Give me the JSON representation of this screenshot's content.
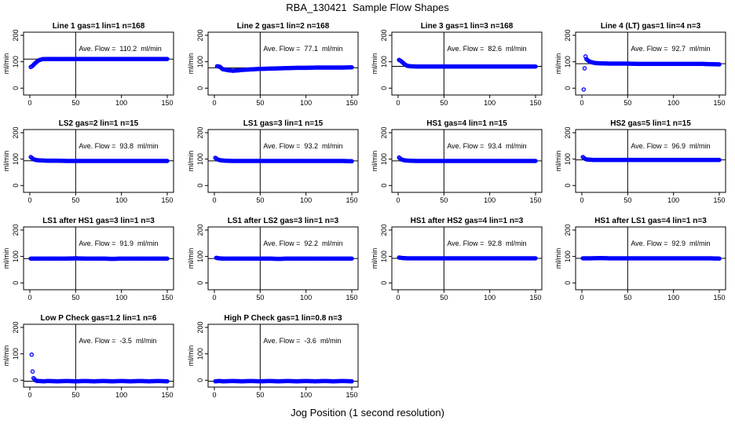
{
  "title": "RBA_130421  Sample Flow Shapes",
  "xlabel": "Jog Position (1 second resolution)",
  "colors": {
    "points": "#0000ff",
    "axes": "#000000"
  },
  "chart_data": [
    {
      "type": "scatter",
      "title": "Line 1 gas=1 lin=1 n=168",
      "ylabel": "ml/min",
      "xlim": [
        0,
        150
      ],
      "ylim": [
        -20,
        200
      ],
      "xticks": [
        0,
        50,
        100,
        150
      ],
      "yticks": [
        0,
        100,
        200
      ],
      "vline_x": 50,
      "hline_y": 110.2,
      "annotation": "Ave. Flow =  110.2  ml/min",
      "points": [
        [
          1,
          80
        ],
        [
          2,
          82
        ],
        [
          3,
          85
        ],
        [
          4,
          88
        ],
        [
          5,
          92
        ],
        [
          6,
          95
        ],
        [
          7,
          98
        ],
        [
          8,
          101
        ],
        [
          9,
          104
        ],
        [
          10,
          106
        ],
        [
          11,
          107
        ],
        [
          12,
          108
        ],
        [
          13,
          109
        ],
        [
          14,
          110
        ],
        [
          15,
          110
        ],
        [
          20,
          110.5
        ],
        [
          30,
          110.5
        ],
        [
          40,
          110.5
        ],
        [
          50,
          110.5
        ],
        [
          60,
          110.5
        ],
        [
          70,
          110.5
        ],
        [
          80,
          110.5
        ],
        [
          90,
          110.5
        ],
        [
          100,
          110.5
        ],
        [
          110,
          110.5
        ],
        [
          120,
          110.5
        ],
        [
          130,
          110.5
        ],
        [
          140,
          110.5
        ],
        [
          150,
          110.5
        ]
      ]
    },
    {
      "type": "scatter",
      "title": "Line 2 gas=1 lin=2 n=168",
      "ylabel": "ml/min",
      "xlim": [
        0,
        150
      ],
      "ylim": [
        -20,
        200
      ],
      "xticks": [
        0,
        50,
        100,
        150
      ],
      "yticks": [
        0,
        100,
        200
      ],
      "vline_x": 50,
      "hline_y": 77.1,
      "annotation": "Ave. Flow =  77.1  ml/min",
      "points": [
        [
          3,
          83
        ],
        [
          6,
          81
        ],
        [
          9,
          72
        ],
        [
          12,
          70
        ],
        [
          15,
          68
        ],
        [
          20,
          66
        ],
        [
          25,
          67
        ],
        [
          30,
          69
        ],
        [
          40,
          71
        ],
        [
          50,
          73
        ],
        [
          60,
          74
        ],
        [
          70,
          75
        ],
        [
          80,
          76
        ],
        [
          90,
          77
        ],
        [
          100,
          77
        ],
        [
          110,
          78
        ],
        [
          120,
          78
        ],
        [
          130,
          78
        ],
        [
          140,
          78
        ],
        [
          150,
          79
        ]
      ]
    },
    {
      "type": "scatter",
      "title": "Line 3 gas=1 lin=3 n=168",
      "ylabel": "ml/min",
      "xlim": [
        0,
        150
      ],
      "ylim": [
        -20,
        200
      ],
      "xticks": [
        0,
        50,
        100,
        150
      ],
      "yticks": [
        0,
        100,
        200
      ],
      "vline_x": 50,
      "hline_y": 82.6,
      "annotation": "Ave. Flow =  82.6  ml/min",
      "points": [
        [
          1,
          107
        ],
        [
          3,
          103
        ],
        [
          5,
          97
        ],
        [
          7,
          91
        ],
        [
          9,
          86
        ],
        [
          11,
          84
        ],
        [
          13,
          83
        ],
        [
          20,
          82
        ],
        [
          30,
          82
        ],
        [
          40,
          82
        ],
        [
          50,
          82
        ],
        [
          60,
          82
        ],
        [
          70,
          82
        ],
        [
          80,
          82
        ],
        [
          90,
          82
        ],
        [
          100,
          82
        ],
        [
          110,
          82
        ],
        [
          120,
          82
        ],
        [
          130,
          82
        ],
        [
          140,
          82
        ],
        [
          150,
          82
        ]
      ]
    },
    {
      "type": "scatter",
      "title": "Line 4 (LT) gas=1 lin=4 n=3",
      "ylabel": "ml/min",
      "xlim": [
        0,
        150
      ],
      "ylim": [
        -20,
        200
      ],
      "xticks": [
        0,
        50,
        100,
        150
      ],
      "yticks": [
        0,
        100,
        200
      ],
      "vline_x": 50,
      "hline_y": 92.7,
      "annotation": "Ave. Flow =  92.7  ml/min",
      "points": [
        [
          2,
          -5
        ],
        [
          3,
          75
        ],
        [
          4,
          120
        ],
        [
          5,
          110
        ],
        [
          7,
          104
        ],
        [
          9,
          100
        ],
        [
          12,
          97
        ],
        [
          15,
          95
        ],
        [
          20,
          94
        ],
        [
          30,
          93
        ],
        [
          40,
          93
        ],
        [
          50,
          93
        ],
        [
          60,
          92
        ],
        [
          70,
          92
        ],
        [
          80,
          92
        ],
        [
          90,
          92
        ],
        [
          100,
          92
        ],
        [
          110,
          92
        ],
        [
          120,
          92
        ],
        [
          130,
          92
        ],
        [
          140,
          91
        ],
        [
          150,
          90
        ]
      ]
    },
    {
      "type": "scatter",
      "title": "LS2 gas=2 lin=1 n=15",
      "ylabel": "ml/min",
      "xlim": [
        0,
        150
      ],
      "ylim": [
        -20,
        200
      ],
      "xticks": [
        0,
        50,
        100,
        150
      ],
      "yticks": [
        0,
        100,
        200
      ],
      "vline_x": 50,
      "hline_y": 93.8,
      "annotation": "Ave. Flow =  93.8  ml/min",
      "points": [
        [
          1,
          108
        ],
        [
          3,
          102
        ],
        [
          5,
          98
        ],
        [
          8,
          96
        ],
        [
          12,
          95
        ],
        [
          20,
          94
        ],
        [
          30,
          94
        ],
        [
          40,
          93
        ],
        [
          50,
          93
        ],
        [
          60,
          93
        ],
        [
          70,
          93
        ],
        [
          80,
          93
        ],
        [
          90,
          93
        ],
        [
          100,
          93
        ],
        [
          110,
          93
        ],
        [
          120,
          93
        ],
        [
          130,
          93
        ],
        [
          140,
          93
        ],
        [
          150,
          93
        ]
      ]
    },
    {
      "type": "scatter",
      "title": "LS1 gas=3 lin=1 n=15",
      "ylabel": "ml/min",
      "xlim": [
        0,
        150
      ],
      "ylim": [
        -20,
        200
      ],
      "xticks": [
        0,
        50,
        100,
        150
      ],
      "yticks": [
        0,
        100,
        200
      ],
      "vline_x": 50,
      "hline_y": 93.2,
      "annotation": "Ave. Flow =  93.2  ml/min",
      "points": [
        [
          1,
          105
        ],
        [
          3,
          100
        ],
        [
          5,
          97
        ],
        [
          8,
          95
        ],
        [
          12,
          94
        ],
        [
          20,
          93
        ],
        [
          30,
          93
        ],
        [
          40,
          93
        ],
        [
          50,
          93
        ],
        [
          60,
          93
        ],
        [
          70,
          93
        ],
        [
          80,
          93
        ],
        [
          90,
          93
        ],
        [
          100,
          93
        ],
        [
          110,
          93
        ],
        [
          120,
          93
        ],
        [
          130,
          93
        ],
        [
          140,
          93
        ],
        [
          150,
          92
        ]
      ]
    },
    {
      "type": "scatter",
      "title": "HS1 gas=4 lin=1 n=15",
      "ylabel": "ml/min",
      "xlim": [
        0,
        150
      ],
      "ylim": [
        -20,
        200
      ],
      "xticks": [
        0,
        50,
        100,
        150
      ],
      "yticks": [
        0,
        100,
        200
      ],
      "vline_x": 50,
      "hline_y": 93.4,
      "annotation": "Ave. Flow =  93.4  ml/min",
      "points": [
        [
          1,
          106
        ],
        [
          3,
          100
        ],
        [
          5,
          97
        ],
        [
          8,
          95
        ],
        [
          12,
          94
        ],
        [
          20,
          93
        ],
        [
          30,
          93
        ],
        [
          40,
          93
        ],
        [
          50,
          93
        ],
        [
          60,
          93
        ],
        [
          70,
          93
        ],
        [
          80,
          93
        ],
        [
          90,
          93
        ],
        [
          100,
          93
        ],
        [
          110,
          93
        ],
        [
          120,
          93
        ],
        [
          130,
          93
        ],
        [
          140,
          93
        ],
        [
          150,
          93
        ]
      ]
    },
    {
      "type": "scatter",
      "title": "HS2 gas=5 lin=1 n=15",
      "ylabel": "ml/min",
      "xlim": [
        0,
        150
      ],
      "ylim": [
        -20,
        200
      ],
      "xticks": [
        0,
        50,
        100,
        150
      ],
      "yticks": [
        0,
        100,
        200
      ],
      "vline_x": 50,
      "hline_y": 96.9,
      "annotation": "Ave. Flow =  96.9  ml/min",
      "points": [
        [
          1,
          108
        ],
        [
          3,
          102
        ],
        [
          5,
          99
        ],
        [
          8,
          98
        ],
        [
          12,
          97
        ],
        [
          20,
          97
        ],
        [
          30,
          97
        ],
        [
          40,
          97
        ],
        [
          50,
          97
        ],
        [
          60,
          97
        ],
        [
          70,
          97
        ],
        [
          80,
          97
        ],
        [
          90,
          97
        ],
        [
          100,
          97
        ],
        [
          110,
          97
        ],
        [
          120,
          97
        ],
        [
          130,
          97
        ],
        [
          140,
          97
        ],
        [
          150,
          97
        ]
      ]
    },
    {
      "type": "scatter",
      "title": "LS1 after HS1 gas=3 lin=1 n=3",
      "ylabel": "ml/min",
      "xlim": [
        0,
        150
      ],
      "ylim": [
        -20,
        200
      ],
      "xticks": [
        0,
        50,
        100,
        150
      ],
      "yticks": [
        0,
        100,
        200
      ],
      "vline_x": 50,
      "hline_y": 91.9,
      "annotation": "Ave. Flow =  91.9  ml/min",
      "points": [
        [
          1,
          92
        ],
        [
          10,
          92
        ],
        [
          20,
          92
        ],
        [
          30,
          92
        ],
        [
          40,
          92
        ],
        [
          50,
          93
        ],
        [
          60,
          92
        ],
        [
          70,
          92
        ],
        [
          80,
          92
        ],
        [
          90,
          91
        ],
        [
          100,
          92
        ],
        [
          110,
          92
        ],
        [
          120,
          92
        ],
        [
          130,
          92
        ],
        [
          140,
          92
        ],
        [
          150,
          92
        ]
      ]
    },
    {
      "type": "scatter",
      "title": "LS1 after LS2 gas=3 lin=1 n=3",
      "ylabel": "ml/min",
      "xlim": [
        0,
        150
      ],
      "ylim": [
        -20,
        200
      ],
      "xticks": [
        0,
        50,
        100,
        150
      ],
      "yticks": [
        0,
        100,
        200
      ],
      "vline_x": 50,
      "hline_y": 92.2,
      "annotation": "Ave. Flow =  92.2  ml/min",
      "points": [
        [
          2,
          95
        ],
        [
          5,
          93
        ],
        [
          10,
          92
        ],
        [
          20,
          92
        ],
        [
          30,
          92
        ],
        [
          40,
          92
        ],
        [
          50,
          92
        ],
        [
          60,
          92
        ],
        [
          70,
          91
        ],
        [
          80,
          92
        ],
        [
          90,
          92
        ],
        [
          100,
          92
        ],
        [
          110,
          92
        ],
        [
          120,
          92
        ],
        [
          130,
          92
        ],
        [
          140,
          92
        ],
        [
          150,
          92
        ]
      ]
    },
    {
      "type": "scatter",
      "title": "HS1 after HS2 gas=4 lin=1 n=3",
      "ylabel": "ml/min",
      "xlim": [
        0,
        150
      ],
      "ylim": [
        -20,
        200
      ],
      "xticks": [
        0,
        50,
        100,
        150
      ],
      "yticks": [
        0,
        100,
        200
      ],
      "vline_x": 50,
      "hline_y": 92.8,
      "annotation": "Ave. Flow =  92.8  ml/min",
      "points": [
        [
          1,
          96
        ],
        [
          5,
          94
        ],
        [
          10,
          93
        ],
        [
          20,
          93
        ],
        [
          30,
          93
        ],
        [
          40,
          93
        ],
        [
          50,
          93
        ],
        [
          60,
          93
        ],
        [
          70,
          93
        ],
        [
          80,
          93
        ],
        [
          90,
          93
        ],
        [
          100,
          93
        ],
        [
          110,
          93
        ],
        [
          120,
          93
        ],
        [
          130,
          93
        ],
        [
          140,
          93
        ],
        [
          150,
          93
        ]
      ]
    },
    {
      "type": "scatter",
      "title": "HS1 after LS1 gas=4 lin=1 n=3",
      "ylabel": "ml/min",
      "xlim": [
        0,
        150
      ],
      "ylim": [
        -20,
        200
      ],
      "xticks": [
        0,
        50,
        100,
        150
      ],
      "yticks": [
        0,
        100,
        200
      ],
      "vline_x": 50,
      "hline_y": 92.9,
      "annotation": "Ave. Flow =  92.9  ml/min",
      "points": [
        [
          1,
          93
        ],
        [
          10,
          93
        ],
        [
          20,
          94
        ],
        [
          30,
          93
        ],
        [
          40,
          93
        ],
        [
          50,
          93
        ],
        [
          60,
          93
        ],
        [
          70,
          93
        ],
        [
          80,
          93
        ],
        [
          90,
          93
        ],
        [
          100,
          93
        ],
        [
          110,
          93
        ],
        [
          120,
          93
        ],
        [
          130,
          93
        ],
        [
          140,
          93
        ],
        [
          150,
          92
        ]
      ]
    },
    {
      "type": "scatter",
      "title": "Low P Check gas=1.2 lin=1 n=6",
      "ylabel": "ml/min",
      "xlim": [
        0,
        150
      ],
      "ylim": [
        -20,
        200
      ],
      "xticks": [
        0,
        50,
        100,
        150
      ],
      "yticks": [
        0,
        100,
        200
      ],
      "vline_x": 50,
      "hline_y": -3.5,
      "annotation": "Ave. Flow =  -3.5  ml/min",
      "points": [
        [
          2,
          97
        ],
        [
          3,
          33
        ],
        [
          4,
          8
        ],
        [
          6,
          0
        ],
        [
          8,
          -3
        ],
        [
          10,
          -3
        ],
        [
          15,
          -4
        ],
        [
          20,
          -3
        ],
        [
          30,
          -4
        ],
        [
          40,
          -3
        ],
        [
          50,
          -4
        ],
        [
          60,
          -3
        ],
        [
          70,
          -4
        ],
        [
          80,
          -3
        ],
        [
          90,
          -4
        ],
        [
          100,
          -3
        ],
        [
          110,
          -4
        ],
        [
          120,
          -3
        ],
        [
          130,
          -4
        ],
        [
          140,
          -3
        ],
        [
          150,
          -4
        ]
      ]
    },
    {
      "type": "scatter",
      "title": "High P Check gas=1 lin=0.8 n=3",
      "ylabel": "ml/min",
      "xlim": [
        0,
        150
      ],
      "ylim": [
        -20,
        200
      ],
      "xticks": [
        0,
        50,
        100,
        150
      ],
      "yticks": [
        0,
        100,
        200
      ],
      "vline_x": 50,
      "hline_y": -3.6,
      "annotation": "Ave. Flow =  -3.6  ml/min",
      "points": [
        [
          1,
          -4
        ],
        [
          5,
          -3
        ],
        [
          10,
          -4
        ],
        [
          20,
          -3
        ],
        [
          30,
          -4
        ],
        [
          40,
          -3
        ],
        [
          50,
          -4
        ],
        [
          60,
          -3
        ],
        [
          70,
          -4
        ],
        [
          80,
          -3
        ],
        [
          90,
          -4
        ],
        [
          100,
          -3
        ],
        [
          110,
          -4
        ],
        [
          120,
          -3
        ],
        [
          130,
          -4
        ],
        [
          140,
          -3
        ],
        [
          150,
          -4
        ]
      ]
    }
  ]
}
